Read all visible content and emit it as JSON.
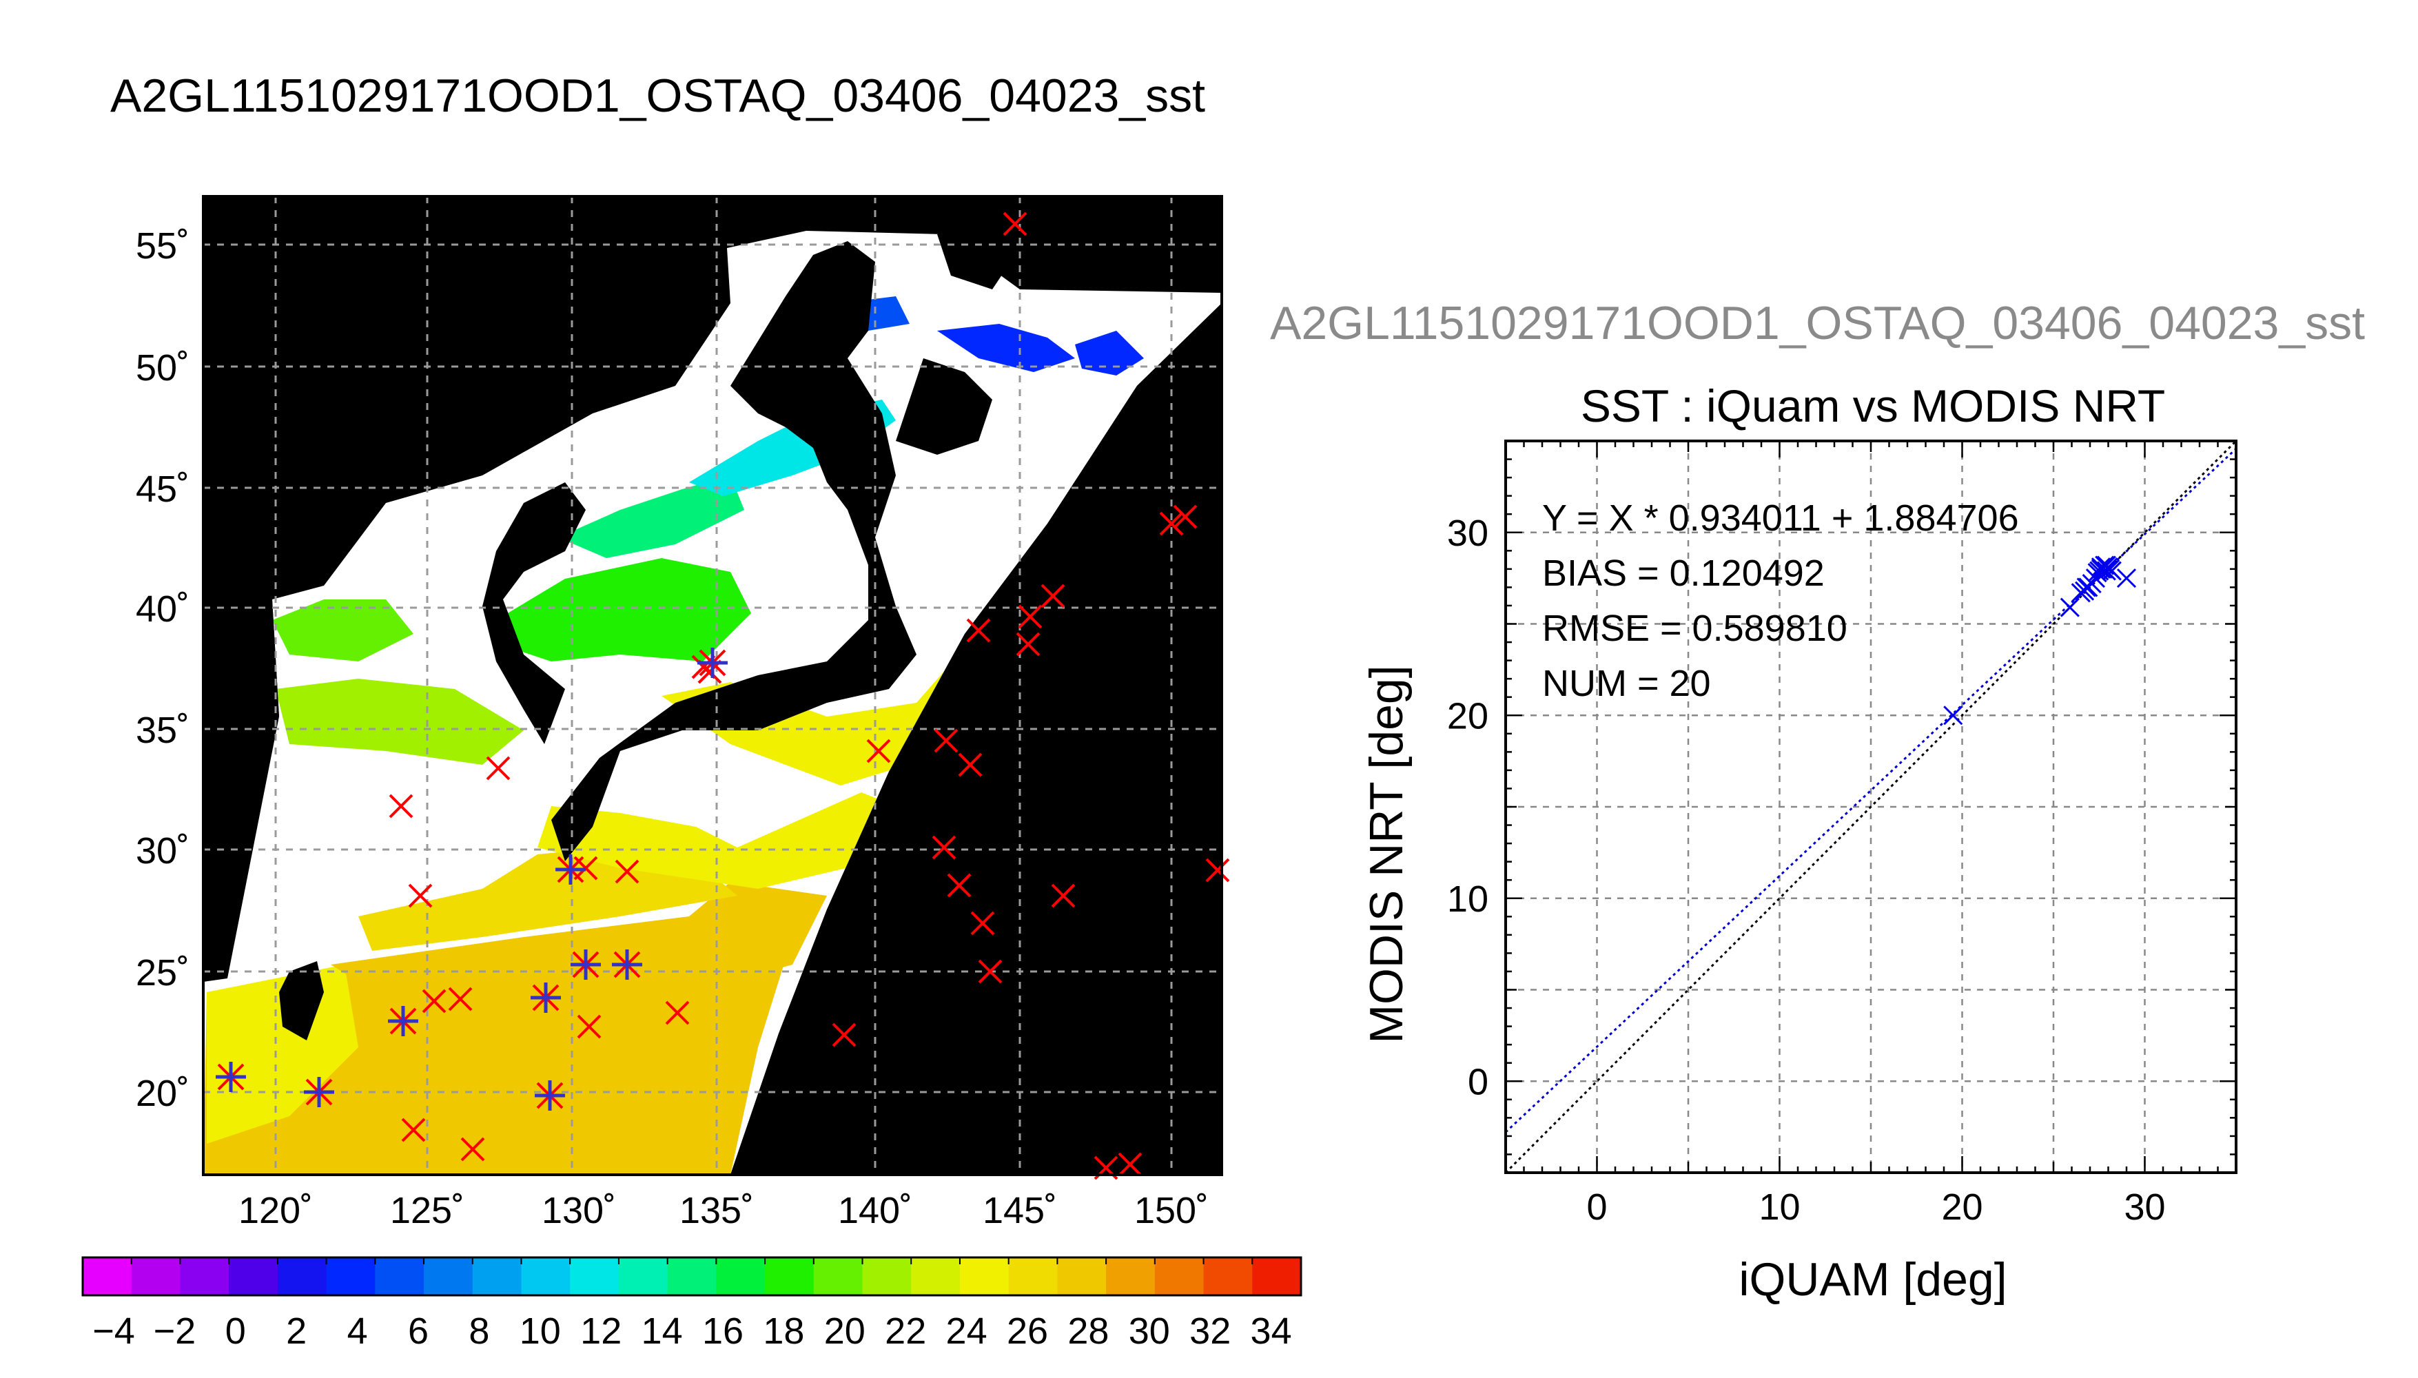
{
  "page": {
    "title": "A2GL1151029171OOD1_OSTAQ_03406_04023_sst",
    "ghost_title": "A2GL1151029171OOD1_OSTAQ_03406_04023_sst"
  },
  "map": {
    "lat_ticks": [
      "55˚",
      "50˚",
      "45˚",
      "40˚",
      "35˚",
      "30˚",
      "25˚",
      "20˚"
    ],
    "lon_ticks": [
      "120˚",
      "125˚",
      "130˚",
      "135˚",
      "140˚",
      "145˚",
      "150˚"
    ],
    "colorbar_labels": [
      "−4",
      "−2",
      "0",
      "2",
      "4",
      "6",
      "8",
      "10",
      "12",
      "14",
      "16",
      "18",
      "20",
      "22",
      "24",
      "26",
      "28",
      "30",
      "32",
      "34"
    ],
    "colorbar_colors": [
      "#e600ff",
      "#b400f0",
      "#8a00f0",
      "#4f00e8",
      "#1414f0",
      "#0028ff",
      "#0050f5",
      "#0078f0",
      "#00a0f0",
      "#00c8f0",
      "#00e6e6",
      "#00f0b4",
      "#00f078",
      "#00f03c",
      "#1ef000",
      "#64f000",
      "#a0f000",
      "#d2f000",
      "#f0f000",
      "#f0dc00",
      "#f0c800",
      "#f0a000",
      "#f07800",
      "#f04b00",
      "#f01e00"
    ],
    "marker_color": "#ff0000",
    "match_color": "#3232c8"
  },
  "chart_data": {
    "type": "scatter",
    "title": "SST : iQuam vs MODIS NRT",
    "xlabel": "iQUAM [deg]",
    "ylabel": "MODIS NRT [deg]",
    "xlim": [
      -5,
      35
    ],
    "ylim": [
      -5,
      35
    ],
    "xticks": [
      0,
      10,
      20,
      30
    ],
    "yticks": [
      0,
      10,
      20,
      30
    ],
    "grid": true,
    "stats": {
      "fit": "Y = X * 0.934011 + 1.884706",
      "bias": "BIAS = 0.120492",
      "rmse": "RMSE = 0.589810",
      "num": "NUM = 20"
    },
    "fit_line": {
      "slope": 0.934011,
      "intercept": 1.884706,
      "color": "#0000cc"
    },
    "identity_line": {
      "slope": 1,
      "intercept": 0,
      "color": "#000000"
    },
    "points": {
      "color": "#0000ee",
      "x": [
        19.5,
        25.9,
        26.5,
        26.7,
        26.9,
        27.1,
        27.3,
        27.5,
        27.6,
        27.7,
        27.8,
        27.9,
        28.0,
        28.1,
        27.4,
        27.9,
        28.2,
        26.8,
        27.6,
        29.0
      ],
      "y": [
        20.0,
        25.9,
        26.7,
        26.8,
        27.0,
        27.2,
        27.5,
        27.9,
        28.1,
        28.0,
        28.2,
        27.9,
        28.1,
        28.0,
        27.8,
        28.2,
        27.9,
        27.0,
        28.0,
        27.5
      ]
    }
  }
}
